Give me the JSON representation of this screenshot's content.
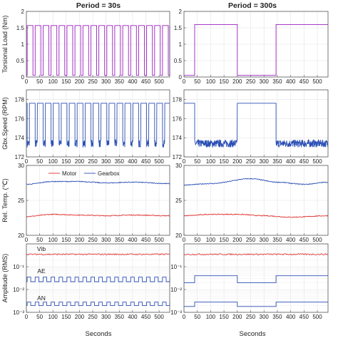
{
  "figure": {
    "col_titles": [
      "Period = 30s",
      "Period = 300s"
    ],
    "xlabel": "Seconds",
    "legend": {
      "motor": "Motor",
      "gearbox": "Gearbox"
    },
    "colors": {
      "magenta": "#9b1fc0",
      "blue": "#2b4fb5",
      "red": "#e03030",
      "grid": "#e3e3e3",
      "frame": "#555555"
    }
  },
  "chart_data": [
    {
      "id": "torque-30",
      "type": "line",
      "ylabel": "Torsional Load (Nm)",
      "xlim": [
        0,
        540
      ],
      "ylim": [
        0,
        2
      ],
      "xticks": [
        "0",
        "50",
        "100",
        "150",
        "200",
        "250",
        "300",
        "350",
        "400",
        "450",
        "500"
      ],
      "yticks": [
        "0",
        "0.5",
        "1",
        "1.5",
        "2"
      ],
      "series": [
        {
          "color": "magenta",
          "kind": "square",
          "period": 30,
          "low": 0.05,
          "high": 1.57,
          "duty": 0.72,
          "start": 3
        }
      ]
    },
    {
      "id": "torque-300",
      "type": "line",
      "ylabel": "",
      "xlim": [
        0,
        540
      ],
      "ylim": [
        0,
        2
      ],
      "xticks": [
        "0",
        "50",
        "100",
        "150",
        "200",
        "250",
        "300",
        "350",
        "400",
        "450",
        "500"
      ],
      "yticks": [
        "0",
        "0.5",
        "1",
        "1.5",
        "2"
      ],
      "series": [
        {
          "color": "magenta",
          "kind": "steps",
          "low": 0.05,
          "high": 1.6,
          "segments": [
            [
              0,
              0.05
            ],
            [
              40,
              1.6
            ],
            [
              200,
              0.05
            ],
            [
              345,
              1.6
            ],
            [
              540,
              1.6
            ]
          ]
        }
      ]
    },
    {
      "id": "speed-30",
      "type": "line",
      "ylabel": "Gbx.Speed (RPM)",
      "xlim": [
        0,
        540
      ],
      "ylim": [
        172,
        179
      ],
      "xticks": [
        "0",
        "50",
        "100",
        "150",
        "200",
        "250",
        "300",
        "350",
        "400",
        "450",
        "500"
      ],
      "yticks": [
        "172",
        "174",
        "176",
        "178"
      ],
      "series": [
        {
          "color": "blue",
          "kind": "square-noisy",
          "period": 30,
          "high": 177.6,
          "low": 173.4,
          "noise": 0.4,
          "duty": 0.28,
          "start": 3
        }
      ]
    },
    {
      "id": "speed-300",
      "type": "line",
      "ylabel": "",
      "xlim": [
        0,
        540
      ],
      "ylim": [
        172,
        179
      ],
      "xticks": [
        "0",
        "50",
        "100",
        "150",
        "200",
        "250",
        "300",
        "350",
        "400",
        "450",
        "500"
      ],
      "yticks": [
        "172",
        "174",
        "176",
        "178"
      ],
      "series": [
        {
          "color": "blue",
          "kind": "speed300",
          "segments": [
            [
              0,
              177.6
            ],
            [
              40,
              173.4
            ],
            [
              200,
              177.6
            ],
            [
              345,
              173.4
            ],
            [
              540,
              173.4
            ]
          ]
        }
      ]
    },
    {
      "id": "temp-30",
      "type": "line",
      "ylabel": "Rel. Temp. (℃)",
      "xlim": [
        0,
        540
      ],
      "ylim": [
        20,
        30
      ],
      "xticks": [
        "0",
        "50",
        "100",
        "150",
        "200",
        "250",
        "300",
        "350",
        "400",
        "450",
        "500"
      ],
      "yticks": [
        "20",
        "25",
        "30"
      ],
      "series": [
        {
          "name": "Motor",
          "color": "red",
          "kind": "slow",
          "points": [
            [
              0,
              22.7
            ],
            [
              100,
              23.0
            ],
            [
              200,
              22.9
            ],
            [
              300,
              22.8
            ],
            [
              400,
              22.9
            ],
            [
              540,
              22.8
            ]
          ]
        },
        {
          "name": "Gearbox",
          "color": "blue",
          "kind": "slow",
          "points": [
            [
              0,
              27.3
            ],
            [
              100,
              27.7
            ],
            [
              200,
              27.7
            ],
            [
              300,
              27.5
            ],
            [
              400,
              27.6
            ],
            [
              540,
              27.4
            ]
          ]
        }
      ]
    },
    {
      "id": "temp-300",
      "type": "line",
      "ylabel": "",
      "xlim": [
        0,
        540
      ],
      "ylim": [
        20,
        30
      ],
      "xticks": [
        "0",
        "50",
        "100",
        "150",
        "200",
        "250",
        "300",
        "350",
        "400",
        "450",
        "500"
      ],
      "yticks": [
        "20",
        "25",
        "30"
      ],
      "series": [
        {
          "name": "Motor",
          "color": "red",
          "kind": "slow",
          "points": [
            [
              0,
              22.8
            ],
            [
              100,
              23.0
            ],
            [
              200,
              23.0
            ],
            [
              300,
              22.8
            ],
            [
              400,
              22.6
            ],
            [
              540,
              22.8
            ]
          ]
        },
        {
          "name": "Gearbox",
          "color": "blue",
          "kind": "slow",
          "points": [
            [
              0,
              27.2
            ],
            [
              100,
              27.4
            ],
            [
              250,
              28.1
            ],
            [
              350,
              27.6
            ],
            [
              450,
              27.3
            ],
            [
              540,
              27.6
            ]
          ]
        }
      ]
    },
    {
      "id": "amp-30",
      "type": "line",
      "ylabel": "Amplitude (RMS)",
      "yscale": "log",
      "xlim": [
        0,
        540
      ],
      "ylim": [
        0.001,
        1
      ],
      "xticks": [
        "0",
        "50",
        "100",
        "150",
        "200",
        "250",
        "300",
        "350",
        "400",
        "450",
        "500"
      ],
      "yticks": [
        "10⁻³",
        "10⁻²",
        "10⁻¹"
      ],
      "annotations": [
        "Vib",
        "AE",
        "AN"
      ],
      "series": [
        {
          "name": "Vib",
          "color": "red",
          "kind": "flat",
          "value": 0.35
        },
        {
          "name": "AE",
          "color": "blue",
          "kind": "square-log",
          "period": 30,
          "high": 0.035,
          "low": 0.022,
          "duty": 0.45,
          "start": 3
        },
        {
          "name": "AN",
          "color": "blue",
          "kind": "square-log",
          "period": 30,
          "high": 0.0028,
          "low": 0.002,
          "duty": 0.45,
          "start": 3
        }
      ]
    },
    {
      "id": "amp-300",
      "type": "line",
      "ylabel": "",
      "yscale": "log",
      "xlim": [
        0,
        540
      ],
      "ylim": [
        0.001,
        1
      ],
      "xticks": [
        "0",
        "50",
        "100",
        "150",
        "200",
        "250",
        "300",
        "350",
        "400",
        "450",
        "500"
      ],
      "yticks": [
        "10⁻³",
        "10⁻²",
        "10⁻¹"
      ],
      "series": [
        {
          "name": "Vib",
          "color": "red",
          "kind": "flat",
          "value": 0.35
        },
        {
          "name": "AE",
          "color": "blue",
          "kind": "steps-log",
          "segments": [
            [
              0,
              0.02
            ],
            [
              40,
              0.04
            ],
            [
              200,
              0.02
            ],
            [
              345,
              0.04
            ],
            [
              540,
              0.04
            ]
          ]
        },
        {
          "name": "AN",
          "color": "blue",
          "kind": "steps-log",
          "segments": [
            [
              0,
              0.0018
            ],
            [
              40,
              0.0028
            ],
            [
              200,
              0.0018
            ],
            [
              345,
              0.0028
            ],
            [
              540,
              0.0028
            ]
          ]
        }
      ]
    }
  ]
}
